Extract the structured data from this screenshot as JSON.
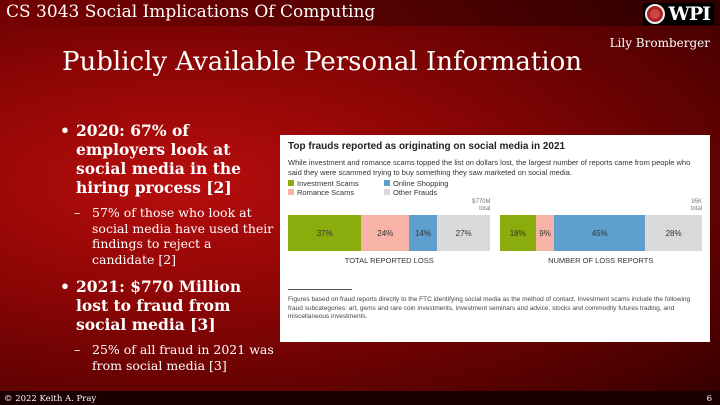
{
  "header": {
    "course": "CS 3043 Social Implications Of Computing",
    "logo_text": "WPI",
    "author": "Lily Bromberger"
  },
  "slide": {
    "title": "Publicly Available Personal Information",
    "bullets": [
      {
        "text": "2020: 67% of employers look at social media in the hiring process [2]",
        "sub": "57% of those who look at social media have used their findings to reject a candidate [2]"
      },
      {
        "text": "2021: $770 Million lost to fraud from social media [3]",
        "sub": "25% of all fraud in 2021 was from social media [3]"
      }
    ]
  },
  "chart_data": {
    "type": "bar",
    "stacked": true,
    "orientation": "horizontal",
    "title": "Top frauds reported as originating on social media in 2021",
    "subtitle": "While investment and romance scams topped the list on dollars lost, the largest number of reports came from people who said they were scammed trying to buy something they saw marketed on social media.",
    "legend": [
      "Investment Scams",
      "Online Shopping",
      "Romance Scams",
      "Other Frauds"
    ],
    "colors": {
      "Investment Scams": "#8aac0c",
      "Romance Scams": "#f7b3a6",
      "Online Shopping": "#5e9fce",
      "Other Frauds": "#d9d9d9"
    },
    "charts": [
      {
        "label": "TOTAL REPORTED LOSS",
        "total_line1": "$770M",
        "total_line2": "total",
        "segments": [
          {
            "name": "Investment Scams",
            "value": 37,
            "label": "37%"
          },
          {
            "name": "Romance Scams",
            "value": 24,
            "label": "24%"
          },
          {
            "name": "Online Shopping",
            "value": 14,
            "label": "14%"
          },
          {
            "name": "Other Frauds",
            "value": 27,
            "label": "27%"
          }
        ]
      },
      {
        "label": "NUMBER OF LOSS REPORTS",
        "total_line1": "95K",
        "total_line2": "total",
        "segments": [
          {
            "name": "Investment Scams",
            "value": 18,
            "label": "18%"
          },
          {
            "name": "Romance Scams",
            "value": 9,
            "label": "9%"
          },
          {
            "name": "Online Shopping",
            "value": 45,
            "label": "45%"
          },
          {
            "name": "Other Frauds",
            "value": 28,
            "label": "28%"
          }
        ]
      }
    ],
    "note": "Figures based on fraud reports directly to the FTC identifying social media as the method of contact. Investment scams include the following fraud subcategories: art, gems and rare coin investments, investment seminars and advice, stocks and commodity futures trading, and miscellaneous investments."
  },
  "footer": {
    "copyright": "© 2022 Keith A. Pray",
    "page": "6"
  }
}
